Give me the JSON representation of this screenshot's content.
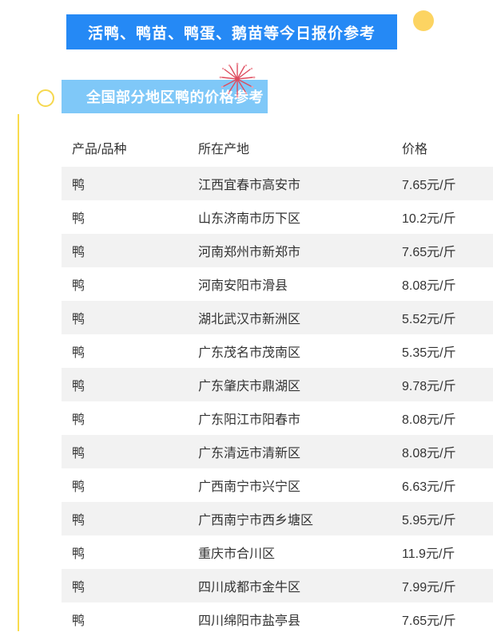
{
  "page": {
    "title_banner": "活鸭、鸭苗、鸭蛋、鹅苗等今日报价参考",
    "section_banner": "全国部分地区鸭的价格参考"
  },
  "colors": {
    "primary_blue": "#2589f5",
    "light_blue": "#7fc8f8",
    "accent_yellow": "#fcd462",
    "line_yellow": "#f9dc4e",
    "row_stripe": "#f2f2f2",
    "text_dark": "#333333",
    "firework_red": "#dd4b5e",
    "firework_pink": "#f2a0a8"
  },
  "decorations": {
    "dot_icon": "yellow-dot",
    "ring_icon": "yellow-ring",
    "line_icon": "yellow-vertical-line",
    "firework_icon": "firework-burst"
  },
  "table": {
    "columns": [
      "产品/品种",
      "所在产地",
      "价格"
    ],
    "rows": [
      {
        "product": "鸭",
        "origin": "江西宜春市高安市",
        "price": "7.65元/斤"
      },
      {
        "product": "鸭",
        "origin": "山东济南市历下区",
        "price": "10.2元/斤"
      },
      {
        "product": "鸭",
        "origin": "河南郑州市新郑市",
        "price": "7.65元/斤"
      },
      {
        "product": "鸭",
        "origin": "河南安阳市滑县",
        "price": "8.08元/斤"
      },
      {
        "product": "鸭",
        "origin": "湖北武汉市新洲区",
        "price": "5.52元/斤"
      },
      {
        "product": "鸭",
        "origin": "广东茂名市茂南区",
        "price": "5.35元/斤"
      },
      {
        "product": "鸭",
        "origin": "广东肇庆市鼎湖区",
        "price": "9.78元/斤"
      },
      {
        "product": "鸭",
        "origin": "广东阳江市阳春市",
        "price": "8.08元/斤"
      },
      {
        "product": "鸭",
        "origin": "广东清远市清新区",
        "price": "8.08元/斤"
      },
      {
        "product": "鸭",
        "origin": "广西南宁市兴宁区",
        "price": "6.63元/斤"
      },
      {
        "product": "鸭",
        "origin": "广西南宁市西乡塘区",
        "price": "5.95元/斤"
      },
      {
        "product": "鸭",
        "origin": "重庆市合川区",
        "price": "11.9元/斤"
      },
      {
        "product": "鸭",
        "origin": "四川成都市金牛区",
        "price": "7.99元/斤"
      },
      {
        "product": "鸭",
        "origin": "四川绵阳市盐亭县",
        "price": "7.65元/斤"
      }
    ]
  }
}
